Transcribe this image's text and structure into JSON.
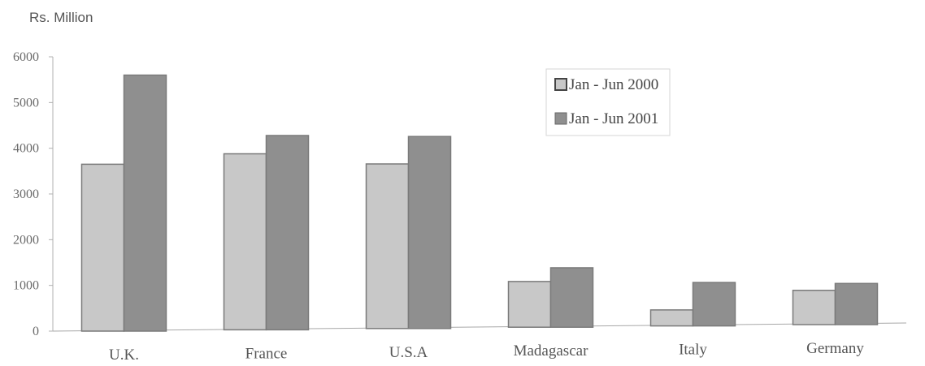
{
  "chart_data": {
    "type": "bar",
    "unit_label": "Rs. Million",
    "categories": [
      "U.K.",
      "France",
      "U.S.A",
      "Madagascar",
      "Italy",
      "Germany"
    ],
    "series": [
      {
        "name": "Jan - Jun 2000",
        "values": [
          3650,
          3850,
          3600,
          1000,
          350,
          750
        ],
        "color": "#c8c8c8"
      },
      {
        "name": "Jan - Jun 2001",
        "values": [
          5600,
          4250,
          4200,
          1300,
          950,
          900
        ],
        "color": "#8f8f8f"
      }
    ],
    "y_ticks": [
      "6000",
      "5000",
      "4000",
      "3000",
      "2000",
      "1000",
      "0"
    ],
    "ylim": [
      0,
      6000
    ],
    "legend_position": "top-right",
    "grid": false
  }
}
